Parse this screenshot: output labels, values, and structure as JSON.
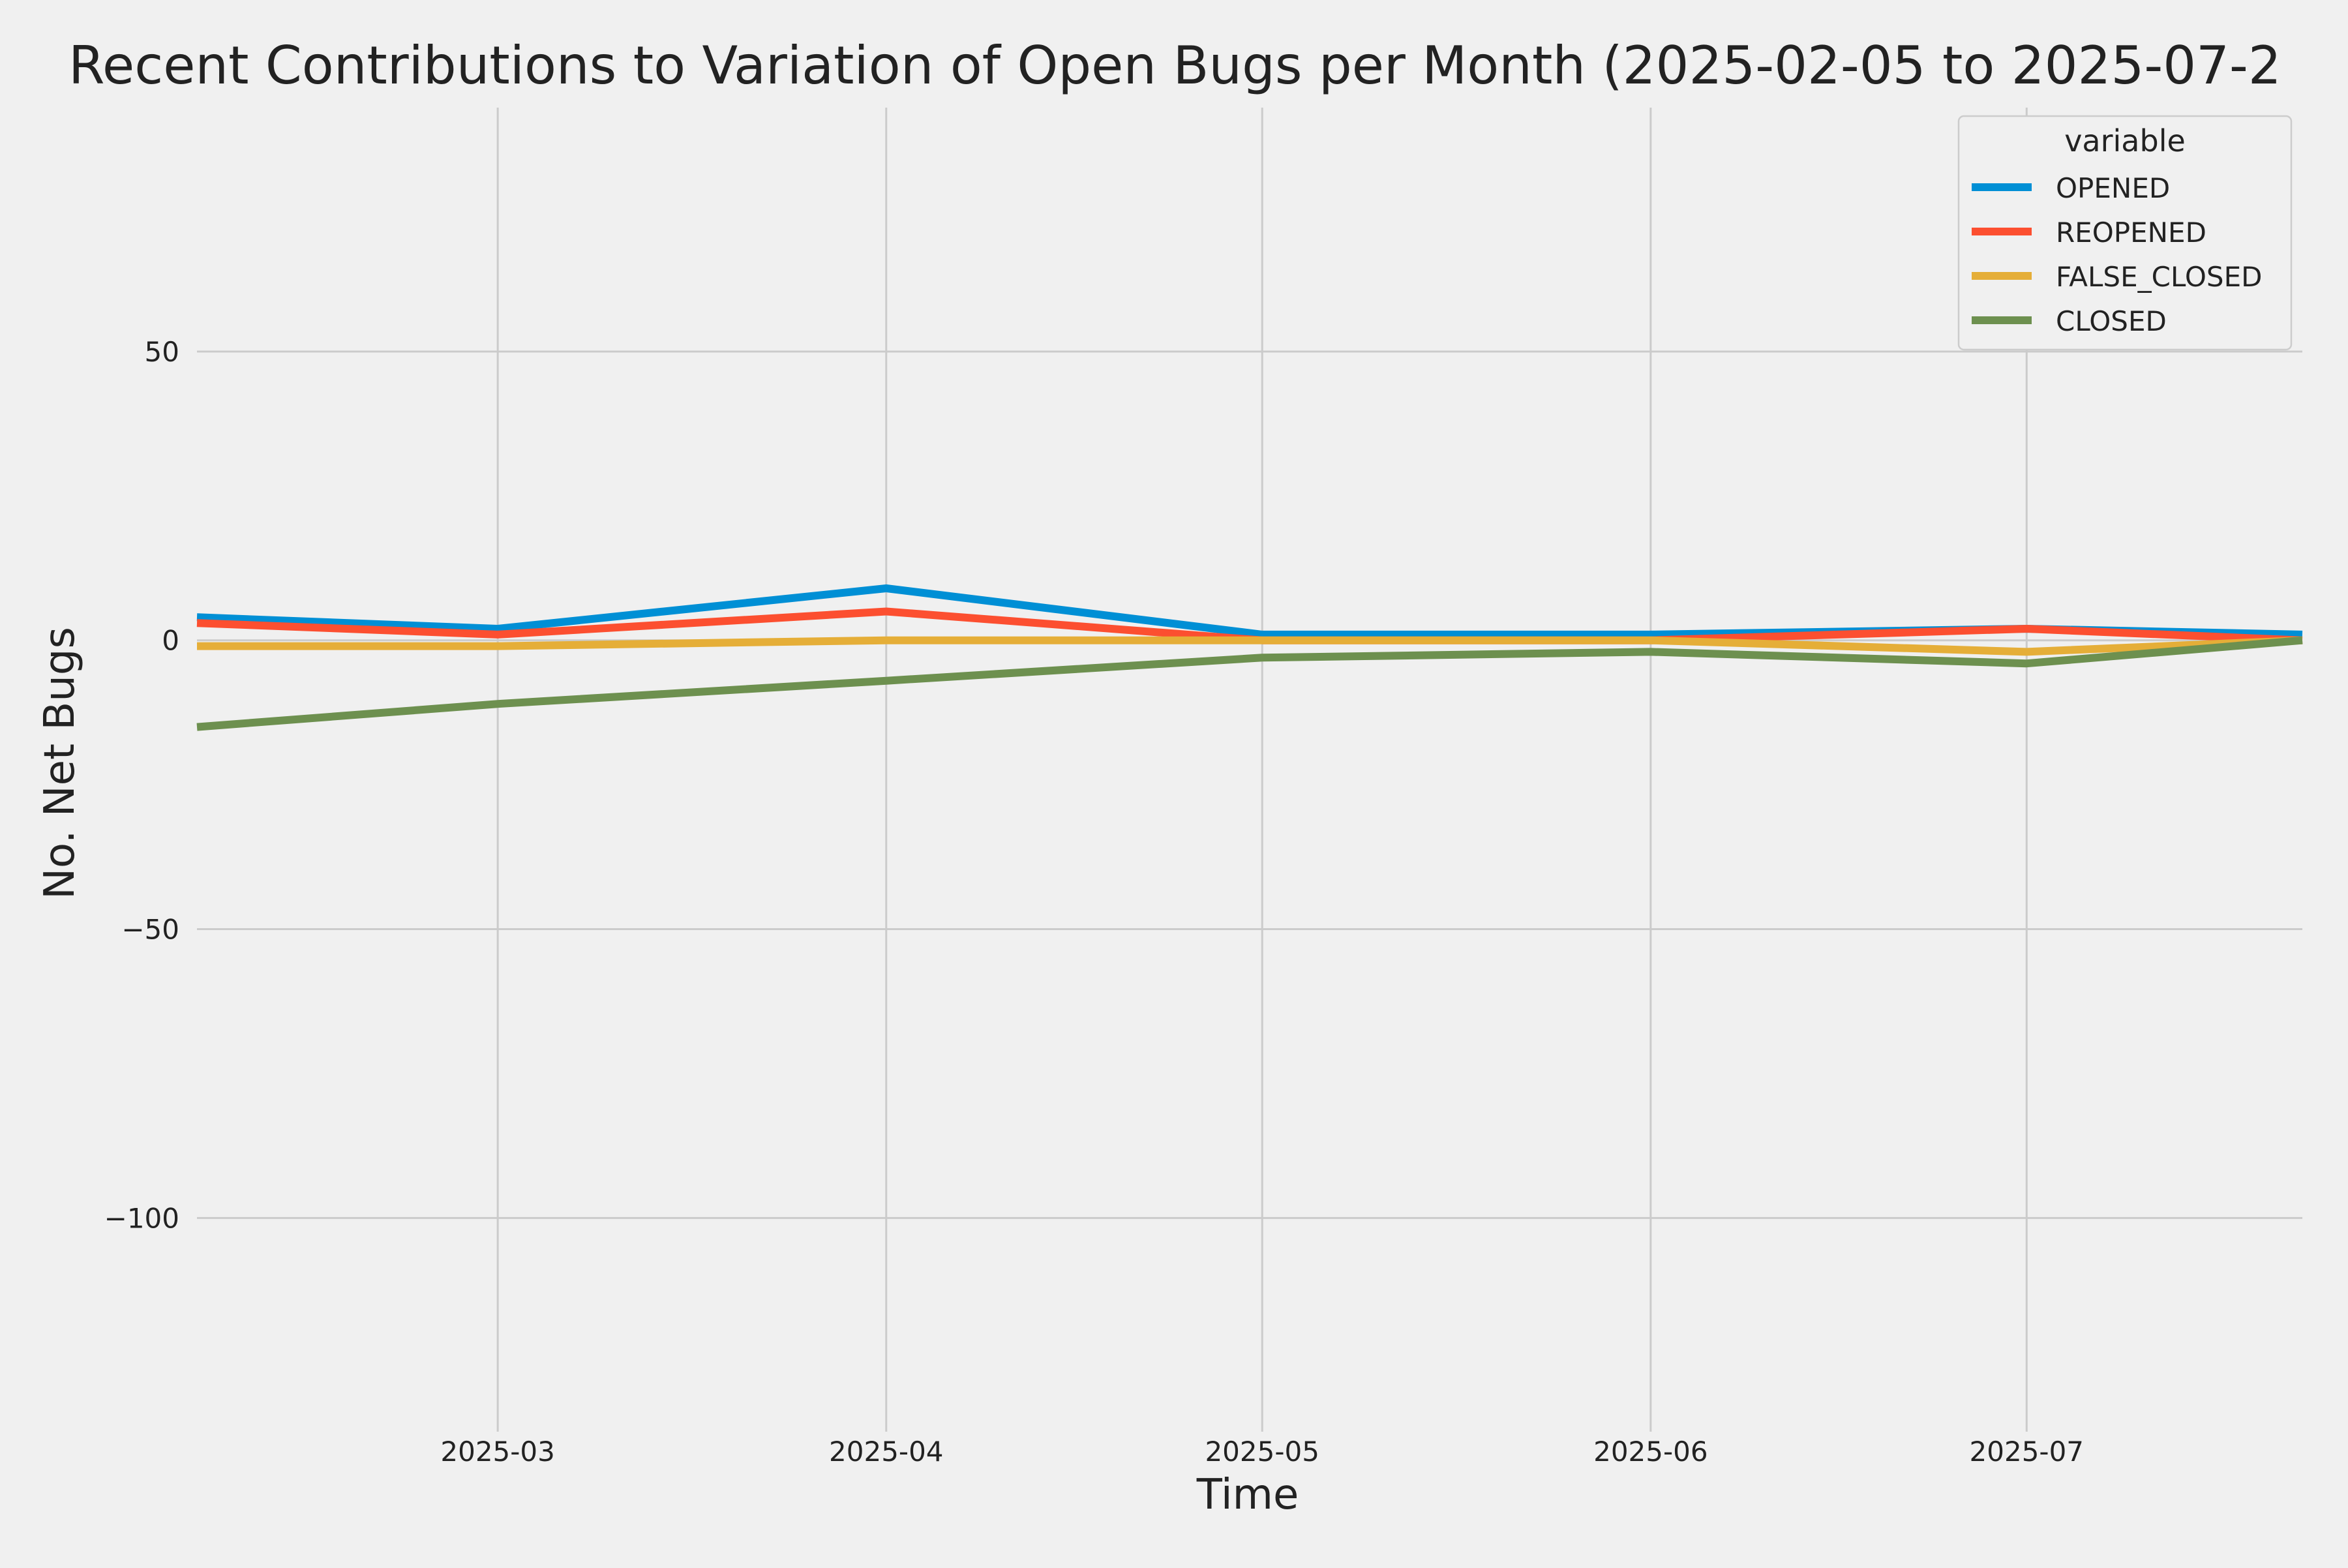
{
  "chart_data": {
    "type": "line",
    "title": "Recent Contributions to Variation of Open Bugs per Month (2025-02-05 to 2025-07-2",
    "xlabel": "Time",
    "ylabel": "No. Net Bugs",
    "x_dates": [
      "2025-02-05",
      "2025-03-01",
      "2025-04-01",
      "2025-05-01",
      "2025-06-01",
      "2025-07-01",
      "2025-07-23"
    ],
    "x_tick_labels": [
      "2025-03",
      "2025-04",
      "2025-05",
      "2025-06",
      "2025-07"
    ],
    "x_tick_dates": [
      "2025-03-01",
      "2025-04-01",
      "2025-05-01",
      "2025-06-01",
      "2025-07-01"
    ],
    "xlim": [
      "2025-02-05",
      "2025-07-23"
    ],
    "y_ticks": [
      50,
      0,
      -50,
      -100
    ],
    "y_tick_labels": [
      "50",
      "0",
      "−50",
      "−100"
    ],
    "ylim": [
      -137,
      99
    ],
    "grid": true,
    "legend": {
      "title": "variable",
      "placement": "top-right"
    },
    "series": [
      {
        "name": "OPENED",
        "color": "#008fd5",
        "values": [
          4,
          2,
          9,
          1,
          1,
          2,
          1
        ]
      },
      {
        "name": "REOPENED",
        "color": "#fc4f30",
        "values": [
          3,
          1,
          5,
          0,
          0,
          2,
          0
        ]
      },
      {
        "name": "FALSE_CLOSED",
        "color": "#e5ae38",
        "values": [
          -1,
          -1,
          0,
          0,
          0,
          -2,
          0
        ]
      },
      {
        "name": "CLOSED",
        "color": "#6d904f",
        "values": [
          -15,
          -11,
          -7,
          -3,
          -2,
          -4,
          0
        ]
      }
    ]
  },
  "colors": {
    "background": "#f0f0f0",
    "grid": "#cbcbcb",
    "text": "#222222"
  }
}
